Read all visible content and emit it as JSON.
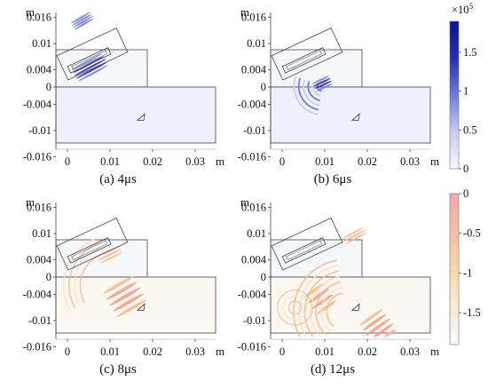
{
  "panels": [
    {
      "id": "a",
      "caption": "(a) 4μs",
      "y_unit": "m",
      "x_unit": "m",
      "y_ticks": [
        "0.016",
        "0.01",
        "0.004",
        "0",
        "-0.004",
        "-0.01",
        "-0.016"
      ],
      "x_ticks": [
        "0",
        "0.01",
        "0.02",
        "0.03"
      ],
      "field": "positive",
      "waves": [
        {
          "kind": "beam",
          "cx": 0.0053,
          "cy": 0.0045,
          "angle": -28,
          "len": 0.0085,
          "wid": 0.0022,
          "stripes": 5,
          "strength": 1.0
        },
        {
          "kind": "beam",
          "cx": 0.0035,
          "cy": 0.0152,
          "angle": -30,
          "len": 0.0055,
          "wid": 0.0012,
          "stripes": 4,
          "strength": 0.8
        }
      ]
    },
    {
      "id": "b",
      "caption": "(b) 6μs",
      "y_unit": "m",
      "x_unit": "m",
      "y_ticks": [
        "0.016",
        "0.01",
        "0.004",
        "0",
        "-0.004",
        "-0.01",
        "-0.016"
      ],
      "x_ticks": [
        "0",
        "0.01",
        "0.02",
        "0.03"
      ],
      "field": "positive",
      "waves": [
        {
          "kind": "arcs",
          "cx": 0.0095,
          "cy": 0.0002,
          "r0": 0.0012,
          "dr": 0.0011,
          "count": 6,
          "a0": 100,
          "a1": 200,
          "strength": 0.9
        },
        {
          "kind": "beam",
          "cx": 0.0095,
          "cy": 0.0008,
          "angle": -25,
          "len": 0.0045,
          "wid": 0.0014,
          "stripes": 4,
          "strength": 1.0
        }
      ]
    },
    {
      "id": "c",
      "caption": "(c) 8μs",
      "y_unit": "m",
      "x_unit": "m",
      "y_ticks": [
        "0.016",
        "0.01",
        "0.004",
        "0",
        "-0.004",
        "-0.01",
        "-0.016"
      ],
      "x_ticks": [
        "0",
        "0.01",
        "0.02",
        "0.03"
      ],
      "field": "negative",
      "waves": [
        {
          "kind": "beam",
          "cx": 0.0135,
          "cy": -0.0045,
          "angle": -30,
          "len": 0.0085,
          "wid": 0.0045,
          "stripes": 5,
          "strength": 1.0
        },
        {
          "kind": "arcs",
          "cx": 0.011,
          "cy": -0.002,
          "r0": 0.008,
          "dr": 0.0013,
          "count": 4,
          "a0": 150,
          "a1": 250,
          "strength": 0.45
        },
        {
          "kind": "beam",
          "cx": 0.01,
          "cy": 0.0052,
          "angle": -25,
          "len": 0.006,
          "wid": 0.0012,
          "stripes": 3,
          "strength": 0.45
        }
      ]
    },
    {
      "id": "d",
      "caption": "(d) 12μs",
      "y_unit": "m",
      "x_unit": "m",
      "y_ticks": [
        "0.016",
        "0.01",
        "0.004",
        "0",
        "-0.004",
        "-0.01",
        "-0.016"
      ],
      "x_ticks": [
        "0",
        "0.01",
        "0.02",
        "0.03"
      ],
      "field": "negative",
      "waves": [
        {
          "kind": "beam",
          "cx": 0.009,
          "cy": -0.005,
          "angle": -35,
          "len": 0.006,
          "wid": 0.0035,
          "stripes": 4,
          "strength": 0.9
        },
        {
          "kind": "beam",
          "cx": 0.0225,
          "cy": -0.0115,
          "angle": -35,
          "len": 0.007,
          "wid": 0.004,
          "stripes": 5,
          "strength": 1.0
        },
        {
          "kind": "arcs",
          "cx": 0.015,
          "cy": -0.008,
          "r0": 0.0045,
          "dr": 0.0013,
          "count": 7,
          "a0": 130,
          "a1": 260,
          "strength": 0.5
        },
        {
          "kind": "arcs",
          "cx": 0.003,
          "cy": -0.007,
          "r0": 0.0015,
          "dr": 0.0013,
          "count": 3,
          "a0": 0,
          "a1": 360,
          "strength": 0.35
        },
        {
          "kind": "beam",
          "cx": 0.017,
          "cy": 0.0095,
          "angle": -28,
          "len": 0.006,
          "wid": 0.001,
          "stripes": 3,
          "strength": 0.5
        }
      ]
    }
  ],
  "colorbars": [
    {
      "id": "top",
      "exponent": "×10",
      "exponent_power": "5",
      "ticks": [
        "1.5",
        "1",
        "0.5",
        "0"
      ],
      "values": [
        1.5,
        1,
        0.5,
        0
      ],
      "range": [
        0,
        1.9
      ],
      "colors": [
        "#f6f7fd",
        "#c7cdf3",
        "#6f7bdc",
        "#2a2bb5",
        "#0a1496"
      ]
    },
    {
      "id": "bottom",
      "ticks": [
        "0",
        "-0.5",
        "-1",
        "-1.5"
      ],
      "values": [
        0,
        -0.5,
        -1,
        -1.5
      ],
      "range": [
        -1.9,
        0
      ],
      "colors": [
        "#f2a6b6",
        "#f6bfa3",
        "#f7d7a8",
        "#f8ead5",
        "#f9f8f6"
      ]
    }
  ]
}
